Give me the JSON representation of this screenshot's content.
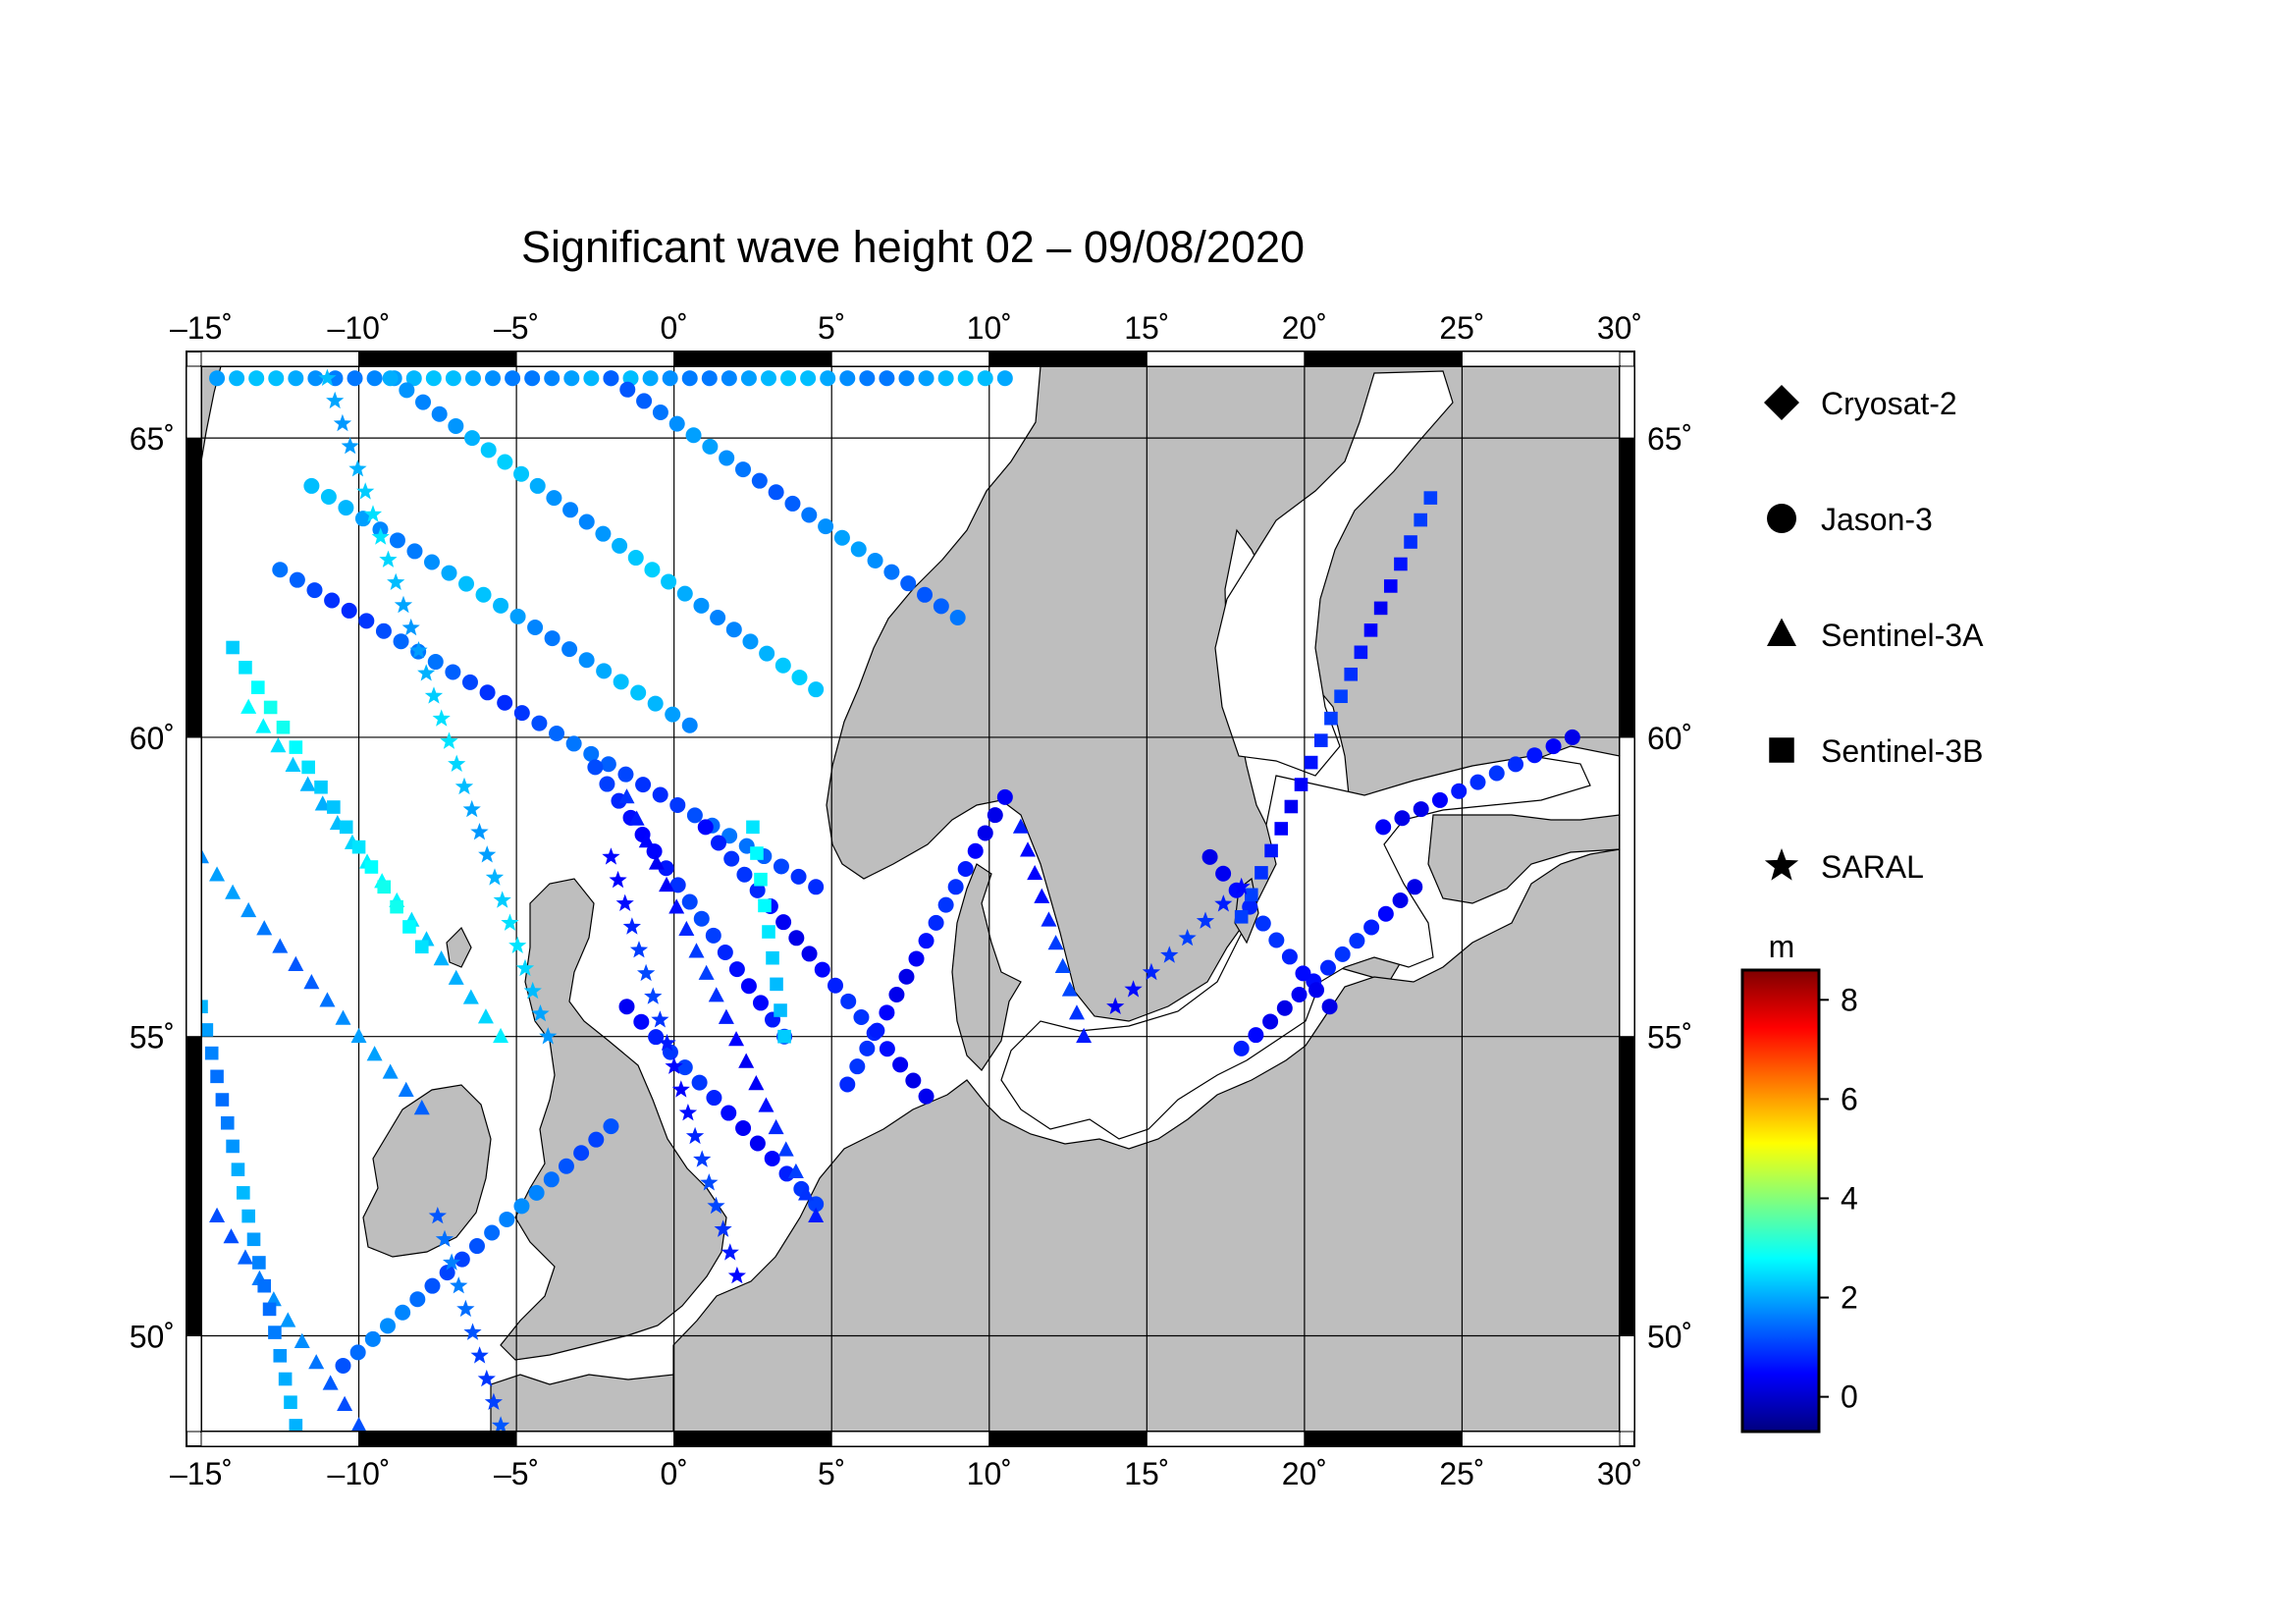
{
  "title": "Significant wave height 02 – 09/08/2020",
  "map": {
    "lon_range": [
      -15,
      30
    ],
    "lat_range": [
      48.4,
      66.2
    ],
    "lon_ticks": [
      "–15˚",
      "–10˚",
      "–5˚",
      "0˚",
      "5˚",
      "10˚",
      "15˚",
      "20˚",
      "25˚",
      "30˚"
    ],
    "lat_ticks": [
      "50˚",
      "55˚",
      "60˚",
      "65˚"
    ],
    "land_color": "#bebebe",
    "sea_color": "#ffffff",
    "grid": true
  },
  "legend": {
    "items": [
      {
        "label": "Cryosat-2",
        "marker": "diamond"
      },
      {
        "label": "Jason-3",
        "marker": "circle"
      },
      {
        "label": "Sentinel-3A",
        "marker": "triangle"
      },
      {
        "label": "Sentinel-3B",
        "marker": "square"
      },
      {
        "label": "SARAL",
        "marker": "star"
      }
    ]
  },
  "colorbar": {
    "unit": "m",
    "range": [
      -0.7,
      8.6
    ],
    "tick_labels": [
      "0",
      "2",
      "4",
      "6",
      "8"
    ],
    "colors": [
      "#00007f",
      "#0000ff",
      "#007fff",
      "#00ffff",
      "#7fff7f",
      "#ffff00",
      "#ff7f00",
      "#ff0000",
      "#7f0000"
    ]
  },
  "tracks": [
    {
      "marker": "circle",
      "from": [
        -14.5,
        66.0
      ],
      "to": [
        10.5,
        66.0
      ],
      "swh": 1.9
    },
    {
      "marker": "circle",
      "from": [
        -11.5,
        64.2
      ],
      "to": [
        0.5,
        60.2
      ],
      "swh": 1.9
    },
    {
      "marker": "circle",
      "from": [
        -12.5,
        62.8
      ],
      "to": [
        4.5,
        57.5
      ],
      "swh": 1.2
    },
    {
      "marker": "circle",
      "from": [
        -9.0,
        66.0
      ],
      "to": [
        4.5,
        60.8
      ],
      "swh": 2.0
    },
    {
      "marker": "circle",
      "from": [
        -2.0,
        66.0
      ],
      "to": [
        9.0,
        62.0
      ],
      "swh": 1.6
    },
    {
      "marker": "circle",
      "from": [
        -1.5,
        55.5
      ],
      "to": [
        4.5,
        52.2
      ],
      "swh": 0.7
    },
    {
      "marker": "circle",
      "from": [
        1.0,
        58.5
      ],
      "to": [
        8.0,
        54.0
      ],
      "swh": 0.6
    },
    {
      "marker": "circle",
      "from": [
        5.5,
        54.2
      ],
      "to": [
        10.5,
        59.0
      ],
      "swh": 0.6
    },
    {
      "marker": "circle",
      "from": [
        -2.5,
        59.5
      ],
      "to": [
        3.5,
        55.0
      ],
      "swh": 0.8
    },
    {
      "marker": "circle",
      "from": [
        18.0,
        54.8
      ],
      "to": [
        23.5,
        57.5
      ],
      "swh": 0.6
    },
    {
      "marker": "circle",
      "from": [
        22.5,
        58.5
      ],
      "to": [
        28.5,
        60.0
      ],
      "swh": 0.6
    },
    {
      "marker": "circle",
      "from": [
        17.0,
        58.0
      ],
      "to": [
        20.8,
        55.5
      ],
      "swh": 0.6
    },
    {
      "marker": "circle",
      "from": [
        -10.5,
        49.5
      ],
      "to": [
        -2.0,
        53.5
      ],
      "swh": 1.4
    },
    {
      "marker": "triangle",
      "from": [
        -15.0,
        58.0
      ],
      "to": [
        -8.0,
        53.8
      ],
      "swh": 1.6
    },
    {
      "marker": "triangle",
      "from": [
        -13.5,
        60.5
      ],
      "to": [
        -5.5,
        55.0
      ],
      "swh": 2.4
    },
    {
      "marker": "triangle",
      "from": [
        -1.5,
        59.0
      ],
      "to": [
        4.5,
        52.0
      ],
      "swh": 0.7
    },
    {
      "marker": "triangle",
      "from": [
        11.0,
        58.5
      ],
      "to": [
        13.0,
        55.0
      ],
      "swh": 0.8
    },
    {
      "marker": "triangle",
      "from": [
        -14.5,
        52.0
      ],
      "to": [
        -10.0,
        48.5
      ],
      "swh": 1.5
    },
    {
      "marker": "square",
      "from": [
        -14.0,
        61.5
      ],
      "to": [
        -8.0,
        56.5
      ],
      "swh": 2.6
    },
    {
      "marker": "square",
      "from": [
        2.5,
        58.5
      ],
      "to": [
        3.5,
        55.0
      ],
      "swh": 2.5
    },
    {
      "marker": "square",
      "from": [
        18.0,
        57.0
      ],
      "to": [
        24.0,
        64.0
      ],
      "swh": 0.7
    },
    {
      "marker": "square",
      "from": [
        -15.0,
        55.5
      ],
      "to": [
        -12.0,
        48.5
      ],
      "swh": 1.8
    },
    {
      "marker": "star",
      "from": [
        -11.0,
        66.0
      ],
      "to": [
        -4.0,
        55.0
      ],
      "swh": 2.2
    },
    {
      "marker": "star",
      "from": [
        -2.0,
        58.0
      ],
      "to": [
        2.0,
        51.0
      ],
      "swh": 0.8
    },
    {
      "marker": "star",
      "from": [
        14.0,
        55.5
      ],
      "to": [
        18.0,
        57.5
      ],
      "swh": 0.7
    },
    {
      "marker": "star",
      "from": [
        -7.5,
        52.0
      ],
      "to": [
        -5.5,
        48.5
      ],
      "swh": 1.3
    }
  ]
}
